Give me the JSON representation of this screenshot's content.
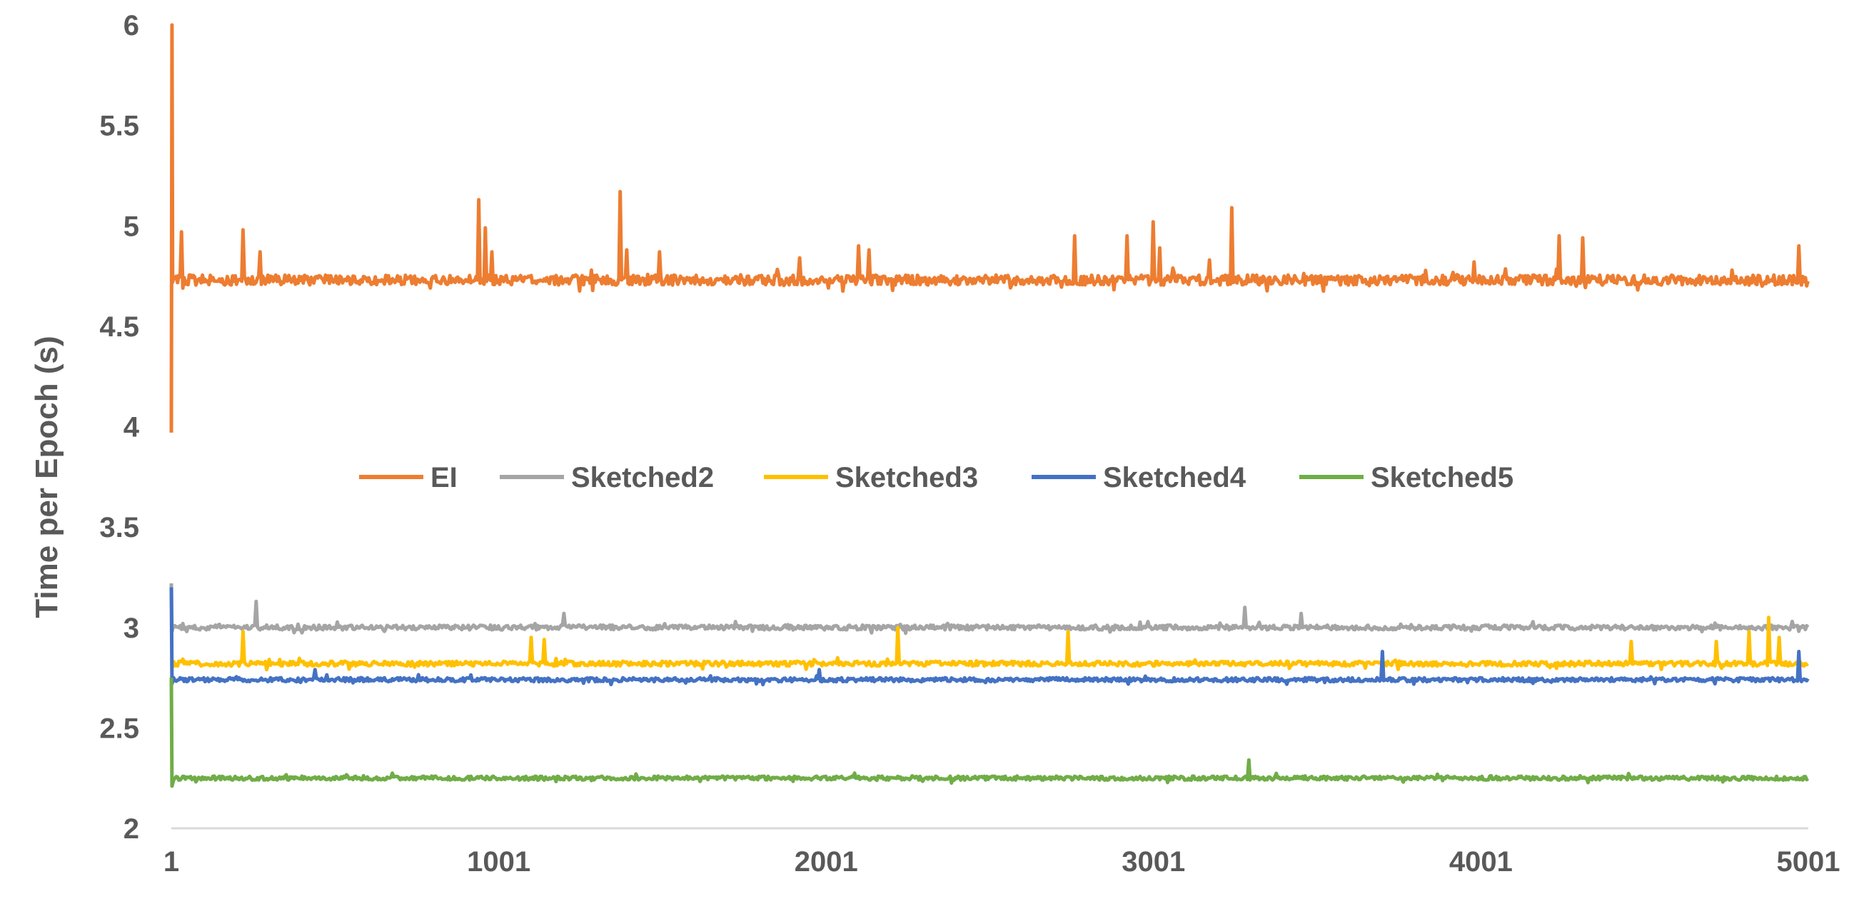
{
  "chart_data": {
    "type": "line",
    "title": "",
    "xlabel": "",
    "ylabel": "Time per Epoch (s)",
    "xlim": [
      1,
      5001
    ],
    "ylim": [
      2,
      6
    ],
    "x_ticks": [
      "1",
      "1001",
      "2001",
      "3001",
      "4001",
      "5001"
    ],
    "y_ticks": [
      "2",
      "2.5",
      "3",
      "3.5",
      "4",
      "4.5",
      "5",
      "5.5",
      "6"
    ],
    "legend_position": "center",
    "grid": false,
    "series": [
      {
        "name": "EI",
        "color": "#ED7D31",
        "baseline": 4.73,
        "noise": 0.025,
        "start_values": [
          3.97,
          6.0,
          4.72
        ],
        "spikes": [
          [
            30,
            4.97
          ],
          [
            220,
            4.98
          ],
          [
            270,
            4.87
          ],
          [
            940,
            5.13
          ],
          [
            960,
            4.99
          ],
          [
            980,
            4.87
          ],
          [
            1370,
            5.17
          ],
          [
            1390,
            4.88
          ],
          [
            1490,
            4.87
          ],
          [
            1920,
            4.84
          ],
          [
            2100,
            4.9
          ],
          [
            2130,
            4.88
          ],
          [
            2760,
            4.95
          ],
          [
            2920,
            4.95
          ],
          [
            3000,
            5.02
          ],
          [
            3020,
            4.89
          ],
          [
            3170,
            4.83
          ],
          [
            3240,
            5.09
          ],
          [
            3980,
            4.82
          ],
          [
            4240,
            4.95
          ],
          [
            4310,
            4.94
          ],
          [
            4970,
            4.9
          ]
        ]
      },
      {
        "name": "Sketched2",
        "color": "#A5A5A5",
        "baseline": 3.0,
        "noise": 0.012,
        "start_values": [
          3.22,
          2.98
        ],
        "spikes": [
          [
            260,
            3.13
          ],
          [
            1200,
            3.07
          ],
          [
            2370,
            3.02
          ],
          [
            3280,
            3.1
          ],
          [
            3450,
            3.07
          ],
          [
            4950,
            3.03
          ]
        ]
      },
      {
        "name": "Sketched3",
        "color": "#FFC000",
        "baseline": 2.82,
        "noise": 0.012,
        "start_values": [
          2.8,
          2.8
        ],
        "spikes": [
          [
            220,
            2.98
          ],
          [
            1100,
            2.95
          ],
          [
            1140,
            2.94
          ],
          [
            2220,
            3.0
          ],
          [
            2740,
            2.98
          ],
          [
            4460,
            2.93
          ],
          [
            4720,
            2.93
          ],
          [
            4820,
            2.98
          ],
          [
            4880,
            3.05
          ],
          [
            4910,
            2.95
          ]
        ]
      },
      {
        "name": "Sketched4",
        "color": "#4472C4",
        "baseline": 2.74,
        "noise": 0.01,
        "start_values": [
          3.2,
          2.72
        ],
        "spikes": [
          [
            440,
            2.79
          ],
          [
            1980,
            2.79
          ],
          [
            3700,
            2.88
          ],
          [
            4970,
            2.88
          ]
        ]
      },
      {
        "name": "Sketched5",
        "color": "#70AD47",
        "baseline": 2.25,
        "noise": 0.01,
        "start_values": [
          2.75,
          2.21
        ],
        "spikes": [
          [
            3290,
            2.34
          ]
        ]
      }
    ]
  }
}
